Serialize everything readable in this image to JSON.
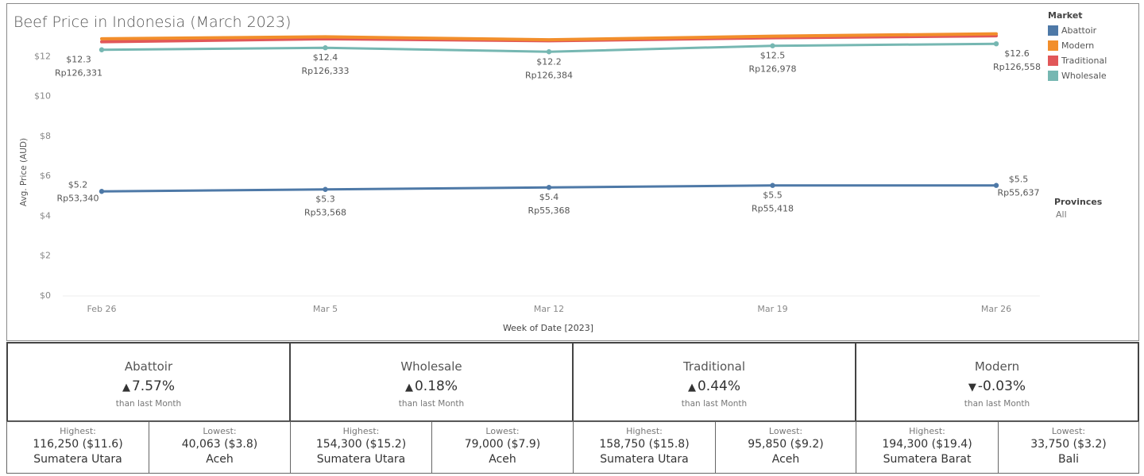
{
  "title": "Beef Price in Indonesia (March 2023)",
  "legend": {
    "title": "Market",
    "items": [
      {
        "name": "Abattoir",
        "color": "#4e79a7"
      },
      {
        "name": "Modern",
        "color": "#f28e2b"
      },
      {
        "name": "Traditional",
        "color": "#e15759"
      },
      {
        "name": "Wholesale",
        "color": "#76b7b2"
      }
    ]
  },
  "provinces": {
    "title": "Provinces",
    "value": "All"
  },
  "chart_data": {
    "type": "line",
    "xlabel": "Week of Date [2023]",
    "ylabel": "Avg. Price (AUD)",
    "ylim": [
      0,
      14
    ],
    "yticks": [
      "$0",
      "$2",
      "$4",
      "$6",
      "$8",
      "$10",
      "$12"
    ],
    "categories": [
      "Feb 26",
      "Mar 5",
      "Mar 12",
      "Mar 19",
      "Mar 26"
    ],
    "series": [
      {
        "name": "Abattoir",
        "color": "#4e79a7",
        "values": [
          5.2,
          5.3,
          5.4,
          5.5,
          5.5
        ],
        "dots": true,
        "labels_aud": [
          "$5.2",
          "$5.3",
          "$5.4",
          "$5.5",
          "$5.5"
        ],
        "labels_idr": [
          "Rp53,340",
          "Rp53,568",
          "Rp55,368",
          "Rp55,418",
          "Rp55,637"
        ]
      },
      {
        "name": "Modern",
        "color": "#f28e2b",
        "values": [
          12.85,
          12.95,
          12.8,
          12.98,
          13.1
        ],
        "dots": false
      },
      {
        "name": "Traditional",
        "color": "#e15759",
        "values": [
          12.7,
          12.85,
          12.75,
          12.9,
          13.0
        ],
        "dots": false
      },
      {
        "name": "Wholesale",
        "color": "#76b7b2",
        "values": [
          12.3,
          12.4,
          12.2,
          12.5,
          12.6
        ],
        "dots": true,
        "labels_aud": [
          "$12.3",
          "$12.4",
          "$12.2",
          "$12.5",
          "$12.6"
        ],
        "labels_idr": [
          "Rp126,331",
          "Rp126,333",
          "Rp126,384",
          "Rp126,978",
          "Rp126,558"
        ]
      }
    ],
    "grid": false,
    "legend_position": "top-right"
  },
  "kpis": [
    {
      "name": "Abattoir",
      "change": "7.57%",
      "direction": "up",
      "sub": "than last Month",
      "highest_label": "Highest:",
      "highest_value": "116,250 ($11.6)",
      "highest_province": "Sumatera Utara",
      "lowest_label": "Lowest:",
      "lowest_value": "40,063 ($3.8)",
      "lowest_province": "Aceh"
    },
    {
      "name": "Wholesale",
      "change": "0.18%",
      "direction": "up",
      "sub": "than last Month",
      "highest_label": "Highest:",
      "highest_value": "154,300 ($15.2)",
      "highest_province": "Sumatera Utara",
      "lowest_label": "Lowest:",
      "lowest_value": "79,000 ($7.9)",
      "lowest_province": "Aceh"
    },
    {
      "name": "Traditional",
      "change": "0.44%",
      "direction": "up",
      "sub": "than last Month",
      "highest_label": "Highest:",
      "highest_value": "158,750 ($15.8)",
      "highest_province": "Sumatera Utara",
      "lowest_label": "Lowest:",
      "lowest_value": "95,850 ($9.2)",
      "lowest_province": "Aceh"
    },
    {
      "name": "Modern",
      "change": "-0.03%",
      "direction": "down",
      "sub": "than last Month",
      "highest_label": "Highest:",
      "highest_value": "194,300 ($19.4)",
      "highest_province": "Sumatera Barat",
      "lowest_label": "Lowest:",
      "lowest_value": "33,750 ($3.2)",
      "lowest_province": "Bali"
    }
  ],
  "arrows": {
    "up": "▲",
    "down": "▼"
  }
}
